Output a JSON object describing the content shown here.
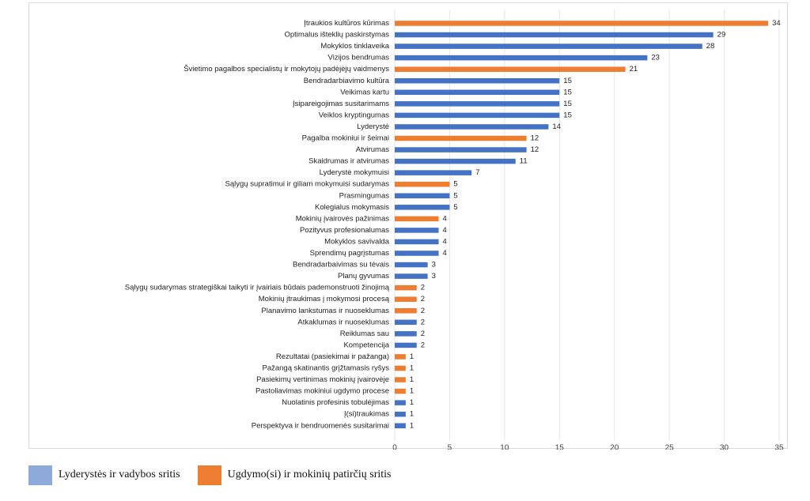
{
  "chart_data": {
    "type": "bar",
    "orientation": "horizontal",
    "categories": [
      "Įtraukios kultūros kūrimas",
      "Optimalus išteklių paskirstymas",
      "Mokyklos tinklaveika",
      "Vizijos bendrumas",
      "Švietimo pagalbos specialistų ir mokytojų padėjėjų vaidmenys",
      "Bendradarbiavimo kultūra",
      "Veikimas kartu",
      "Įsipareigojimas susitarimams",
      "Veiklos kryptingumas",
      "Lyderystė",
      "Pagalba mokiniui ir šeimai",
      "Atvirumas",
      "Skaidrumas ir atvirumas",
      "Lyderystė mokymuisi",
      "Sąlygų supratimui ir giliam mokymuisi sudarymas",
      "Prasmingumas",
      "Kolegialus mokymasis",
      "Mokinių įvairovės pažinimas",
      "Pozityvus profesionalumas",
      "Mokyklos savivalda",
      "Sprendimų pagrįstumas",
      "Bendradarbaivimas su tėvais",
      "Planų gyvumas",
      "Sąlygų sudarymas strategiškai taikyti ir įvairiais būdais pademonstruoti žinojimą",
      "Mokinių įtraukimas į mokymosi procesą",
      "Planavimo lankstumas ir nuoseklumas",
      "Atkaklumas ir nuoseklumas",
      "Reiklumas sau",
      "Kompetencija",
      "Rezultatai (pasiekimai ir pažanga)",
      "Pažangą skatinantis grįžtamasis ryšys",
      "Pasiekimų vertinimas mokinių įvairovėje",
      "Pastoliavimas mokiniui ugdymo procese",
      "Nuolatinis profesinis tobulėjimas",
      "Į(si)traukimas",
      "Perspektyva ir bendruomenės susitarimai"
    ],
    "values": [
      34,
      29,
      28,
      23,
      21,
      15,
      15,
      15,
      15,
      14,
      12,
      12,
      11,
      7,
      5,
      5,
      5,
      4,
      4,
      4,
      4,
      3,
      3,
      2,
      2,
      2,
      2,
      2,
      2,
      1,
      1,
      1,
      1,
      1,
      1,
      1
    ],
    "series_index": [
      1,
      0,
      0,
      0,
      1,
      0,
      0,
      0,
      0,
      0,
      1,
      0,
      0,
      0,
      1,
      0,
      0,
      1,
      0,
      0,
      0,
      0,
      0,
      1,
      1,
      1,
      0,
      0,
      0,
      1,
      1,
      1,
      1,
      0,
      0,
      0
    ],
    "series": [
      {
        "name": "Lyderystės ir vadybos sritis",
        "color": "#4472c4",
        "legend_color": "#8eaadb"
      },
      {
        "name": "Ugdymo(si) ir mokinių patirčių sritis",
        "color": "#ed7d31",
        "legend_color": "#ed7d31"
      }
    ],
    "x_ticks": [
      "0",
      "5",
      "10",
      "15",
      "20",
      "25",
      "30",
      "35"
    ],
    "xlim": [
      0,
      35
    ],
    "grid": true,
    "legend_position": "bottom-left",
    "data_labels": true
  }
}
